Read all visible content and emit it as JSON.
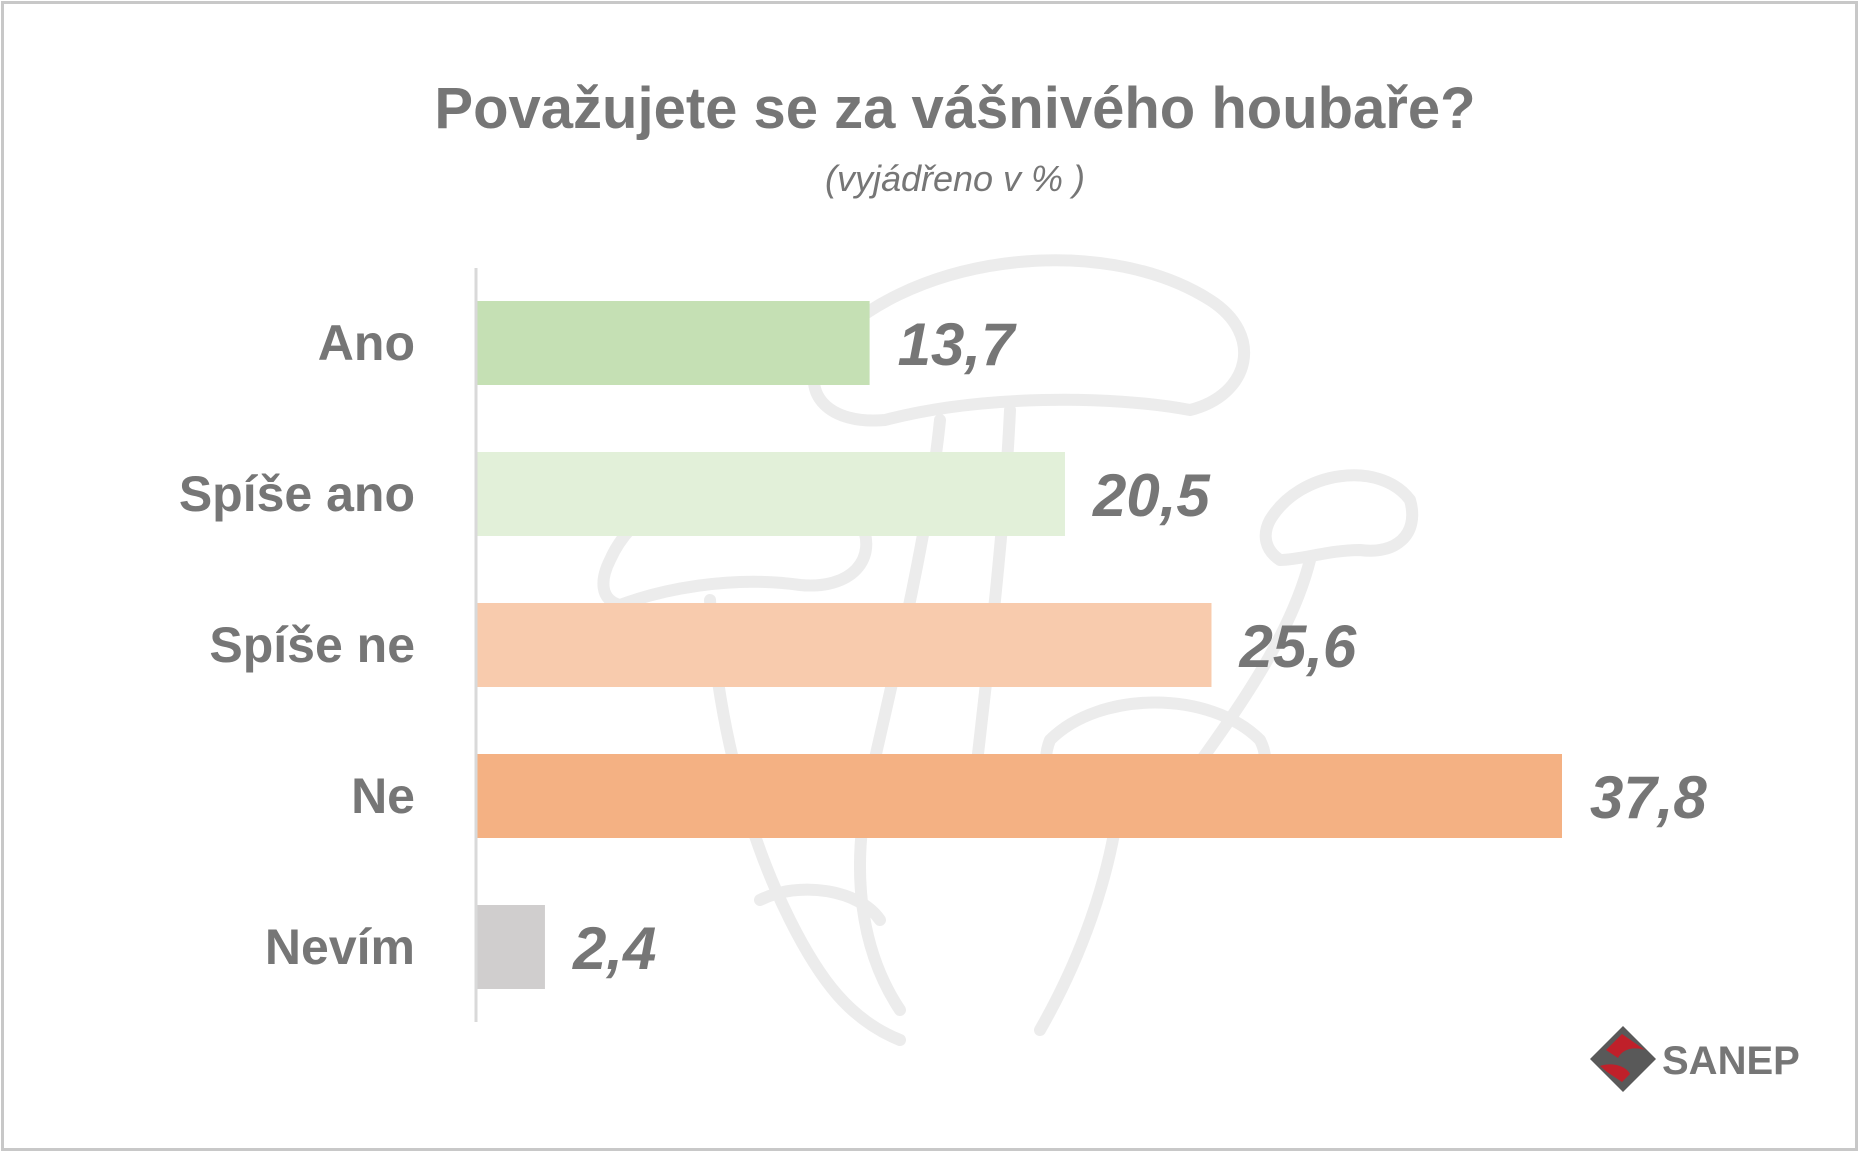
{
  "chart_data": {
    "type": "bar",
    "orientation": "horizontal",
    "title": "Považujete se za vášnivého houbaře?",
    "subtitle": "(vyjádřeno v % )",
    "categories": [
      "Ano",
      "Spíše ano",
      "Spíše ne",
      "Ne",
      "Nevím"
    ],
    "values": [
      13.7,
      20.5,
      25.6,
      37.8,
      2.4
    ],
    "value_labels": [
      "13,7",
      "20,5",
      "25,6",
      "37,8",
      "2,4"
    ],
    "colors": [
      "#c5e0b4",
      "#e2f0d9",
      "#f8cbad",
      "#f4b183",
      "#d0cece"
    ],
    "xlim": [
      0,
      40
    ],
    "grid": false,
    "legend": "none"
  },
  "logo": {
    "text": "SANEP",
    "mark_color": "#c0202a",
    "mark_dark": "#595959"
  },
  "watermark": {
    "icon": "mushroom-watermark-icon",
    "color": "#ececec"
  },
  "colors": {
    "text": "#767676",
    "axis": "#d9d9d9",
    "frame": "#c8c8c8"
  }
}
